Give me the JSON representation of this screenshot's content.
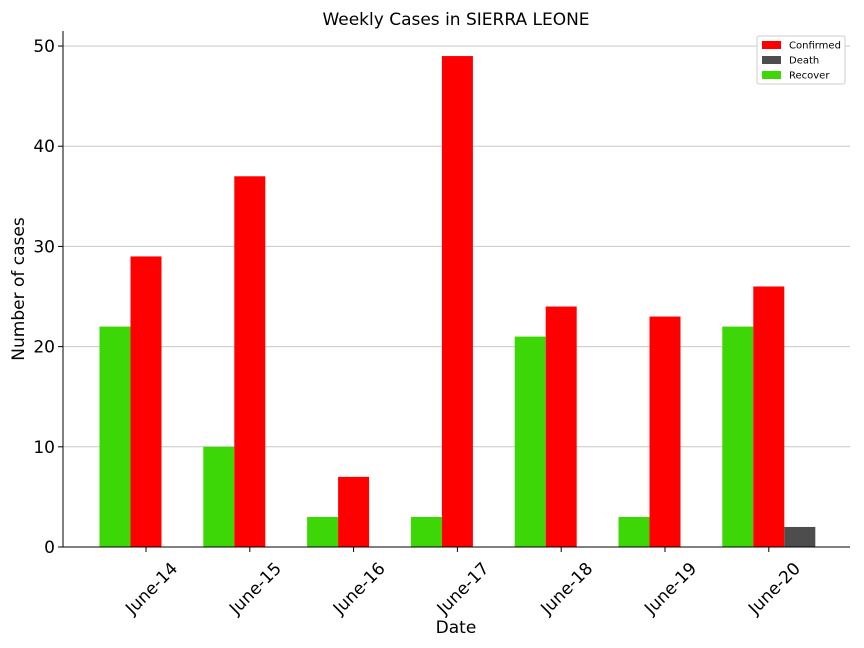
{
  "chart_data": {
    "type": "bar",
    "title": "Weekly Cases in SIERRA LEONE",
    "xlabel": "Date",
    "ylabel": "Number of cases",
    "categories": [
      "June-14",
      "June-15",
      "June-16",
      "June-17",
      "June-18",
      "June-19",
      "June-20"
    ],
    "ylim": [
      0,
      51.5
    ],
    "yticks": [
      0,
      10,
      20,
      30,
      40,
      50
    ],
    "grid": "horizontal",
    "legend_position": "top-right",
    "series": [
      {
        "name": "Recover",
        "color": "#3dd606",
        "values": [
          22,
          10,
          3,
          3,
          21,
          3,
          22
        ]
      },
      {
        "name": "Confirmed",
        "color": "#ff0000",
        "values": [
          29,
          37,
          7,
          49,
          24,
          23,
          26
        ]
      },
      {
        "name": "Death",
        "color": "#4d4d4d",
        "values": [
          0,
          0,
          0,
          0,
          0,
          0,
          2
        ]
      }
    ],
    "legend_order": [
      "Confirmed",
      "Death",
      "Recover"
    ]
  }
}
